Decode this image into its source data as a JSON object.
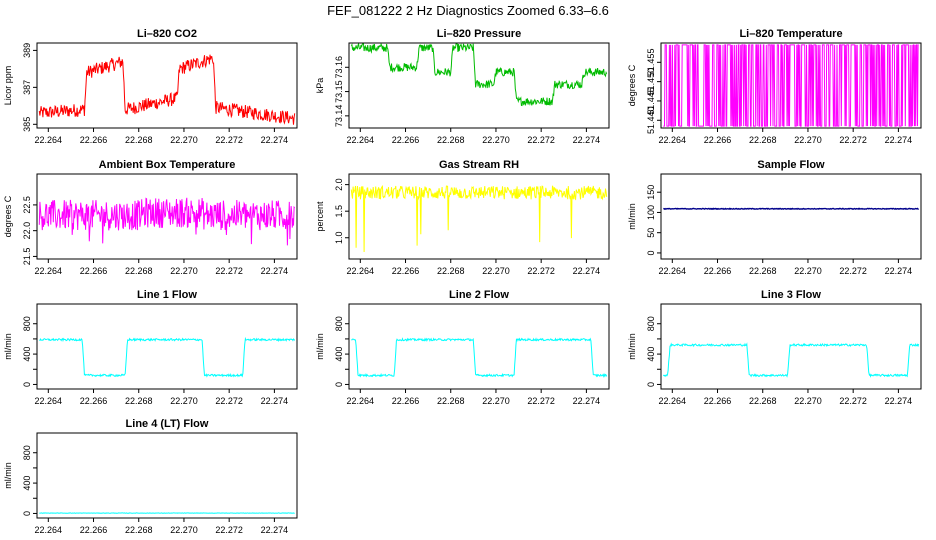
{
  "figure": {
    "title": "FEF_081222  2 Hz Diagnostics Zoomed 6.33–6.6"
  },
  "x_ticks": [
    "22.264",
    "22.266",
    "22.268",
    "22.270",
    "22.272",
    "22.274"
  ],
  "x_range": [
    22.2635,
    22.275
  ],
  "chart_data": [
    {
      "type": "line",
      "title": "Li–820 CO2",
      "ylabel": "Licor ppm",
      "color": "#ff0000",
      "ylim": [
        384.8,
        389.4
      ],
      "yticks": [
        385,
        387,
        389
      ],
      "ytick_labels": [
        "385",
        "387",
        "389"
      ],
      "x": [
        22.2635,
        22.2656,
        22.2657,
        22.2673,
        22.2674,
        22.2697,
        22.2698,
        22.2713,
        22.2714,
        22.275
      ],
      "y": [
        385.6,
        385.8,
        387.8,
        388.4,
        385.8,
        386.4,
        388.0,
        388.6,
        385.9,
        385.3
      ]
    },
    {
      "type": "line",
      "title": "Li–820 Pressure",
      "ylabel": "kPa",
      "color": "#00bb00",
      "ylim": [
        73.135,
        73.17
      ],
      "yticks": [
        73.14,
        73.15,
        73.16
      ],
      "ytick_labels": [
        "73.14",
        "73.15",
        "73.16"
      ],
      "x": [
        22.2635,
        22.2652,
        22.2653,
        22.2665,
        22.2666,
        22.2672,
        22.2673,
        22.268,
        22.2681,
        22.269,
        22.2691,
        22.2699,
        22.27,
        22.2708,
        22.2709,
        22.2725,
        22.2726,
        22.2738,
        22.2739,
        22.275
      ],
      "y": [
        73.168,
        73.168,
        73.16,
        73.16,
        73.168,
        73.168,
        73.158,
        73.158,
        73.168,
        73.168,
        73.153,
        73.153,
        73.158,
        73.158,
        73.146,
        73.146,
        73.153,
        73.153,
        73.158,
        73.158
      ]
    },
    {
      "type": "line",
      "title": "Li–820 Temperature",
      "ylabel": "degrees C",
      "color": "#ff00ff",
      "ylim": [
        51.438,
        51.46
      ],
      "yticks": [
        51.44,
        51.445,
        51.45,
        51.455
      ],
      "ytick_labels": [
        "51.440",
        "51.445",
        "51.450",
        "51.455"
      ],
      "x": [
        22.2635,
        22.275
      ],
      "y": [
        51.4385,
        51.4595
      ]
    },
    {
      "type": "line",
      "title": "Ambient Box Temperature",
      "ylabel": "degrees C",
      "color": "#ff00ff",
      "ylim": [
        21.45,
        23.1
      ],
      "yticks": [
        21.5,
        22.0,
        22.5
      ],
      "ytick_labels": [
        "21.5",
        "22.0",
        "22.5"
      ],
      "x": [
        22.2635,
        22.2681,
        22.2682,
        22.2708,
        22.2709,
        22.275
      ],
      "y": [
        22.3,
        22.3,
        22.35,
        22.35,
        22.3,
        22.3
      ]
    },
    {
      "type": "line",
      "title": "Gas Stream RH",
      "ylabel": "percent",
      "color": "#ffff00",
      "ylim": [
        0.6,
        2.2
      ],
      "yticks": [
        1.0,
        1.5,
        2.0
      ],
      "ytick_labels": [
        "1.0",
        "1.5",
        "2.0"
      ],
      "x": [
        22.2635,
        22.275
      ],
      "y": [
        1.85,
        1.85
      ]
    },
    {
      "type": "line",
      "title": "Sample Flow",
      "ylabel": "ml/min",
      "color": "#00008b",
      "ylim": [
        -15,
        195
      ],
      "yticks": [
        0,
        50,
        100,
        150
      ],
      "ytick_labels": [
        "0",
        "50",
        "100",
        "150"
      ],
      "x": [
        22.2635,
        22.275
      ],
      "y": [
        109,
        109
      ]
    },
    {
      "type": "line",
      "title": "Line 1 Flow",
      "ylabel": "ml/min",
      "color": "#00ffff",
      "ylim": [
        -60,
        1060
      ],
      "yticks": [
        0,
        200,
        400,
        600,
        800
      ],
      "ytick_labels": [
        "0",
        "400",
        "800"
      ],
      "x": [
        22.2635,
        22.2655,
        22.2656,
        22.2674,
        22.2675,
        22.2708,
        22.2709,
        22.2726,
        22.2727,
        22.275
      ],
      "y": [
        590,
        590,
        120,
        120,
        590,
        590,
        120,
        120,
        590,
        590
      ]
    },
    {
      "type": "line",
      "title": "Line 2 Flow",
      "ylabel": "ml/min",
      "color": "#00ffff",
      "ylim": [
        -60,
        1060
      ],
      "yticks": [
        0,
        200,
        400,
        600,
        800
      ],
      "ytick_labels": [
        "0",
        "400",
        "800"
      ],
      "x": [
        22.2635,
        22.2638,
        22.2639,
        22.2655,
        22.2656,
        22.269,
        22.2691,
        22.2708,
        22.2709,
        22.2742,
        22.2743,
        22.275
      ],
      "y": [
        590,
        590,
        120,
        120,
        590,
        590,
        120,
        120,
        590,
        590,
        120,
        120
      ]
    },
    {
      "type": "line",
      "title": "Line 3 Flow",
      "ylabel": "ml/min",
      "color": "#00ffff",
      "ylim": [
        -60,
        1060
      ],
      "yticks": [
        0,
        200,
        400,
        600,
        800
      ],
      "ytick_labels": [
        "0",
        "400",
        "800"
      ],
      "x": [
        22.2635,
        22.2638,
        22.2639,
        22.2673,
        22.2674,
        22.2691,
        22.2692,
        22.2726,
        22.2727,
        22.2744,
        22.2745,
        22.275
      ],
      "y": [
        120,
        120,
        520,
        520,
        120,
        120,
        520,
        520,
        120,
        120,
        520,
        520
      ]
    },
    {
      "type": "line",
      "title": "Line 4 (LT) Flow",
      "ylabel": "ml/min",
      "color": "#00ffff",
      "ylim": [
        -60,
        1060
      ],
      "yticks": [
        0,
        200,
        400,
        600,
        800
      ],
      "ytick_labels": [
        "0",
        "400",
        "800"
      ],
      "x": [
        22.2635,
        22.275
      ],
      "y": [
        5,
        5
      ]
    }
  ]
}
